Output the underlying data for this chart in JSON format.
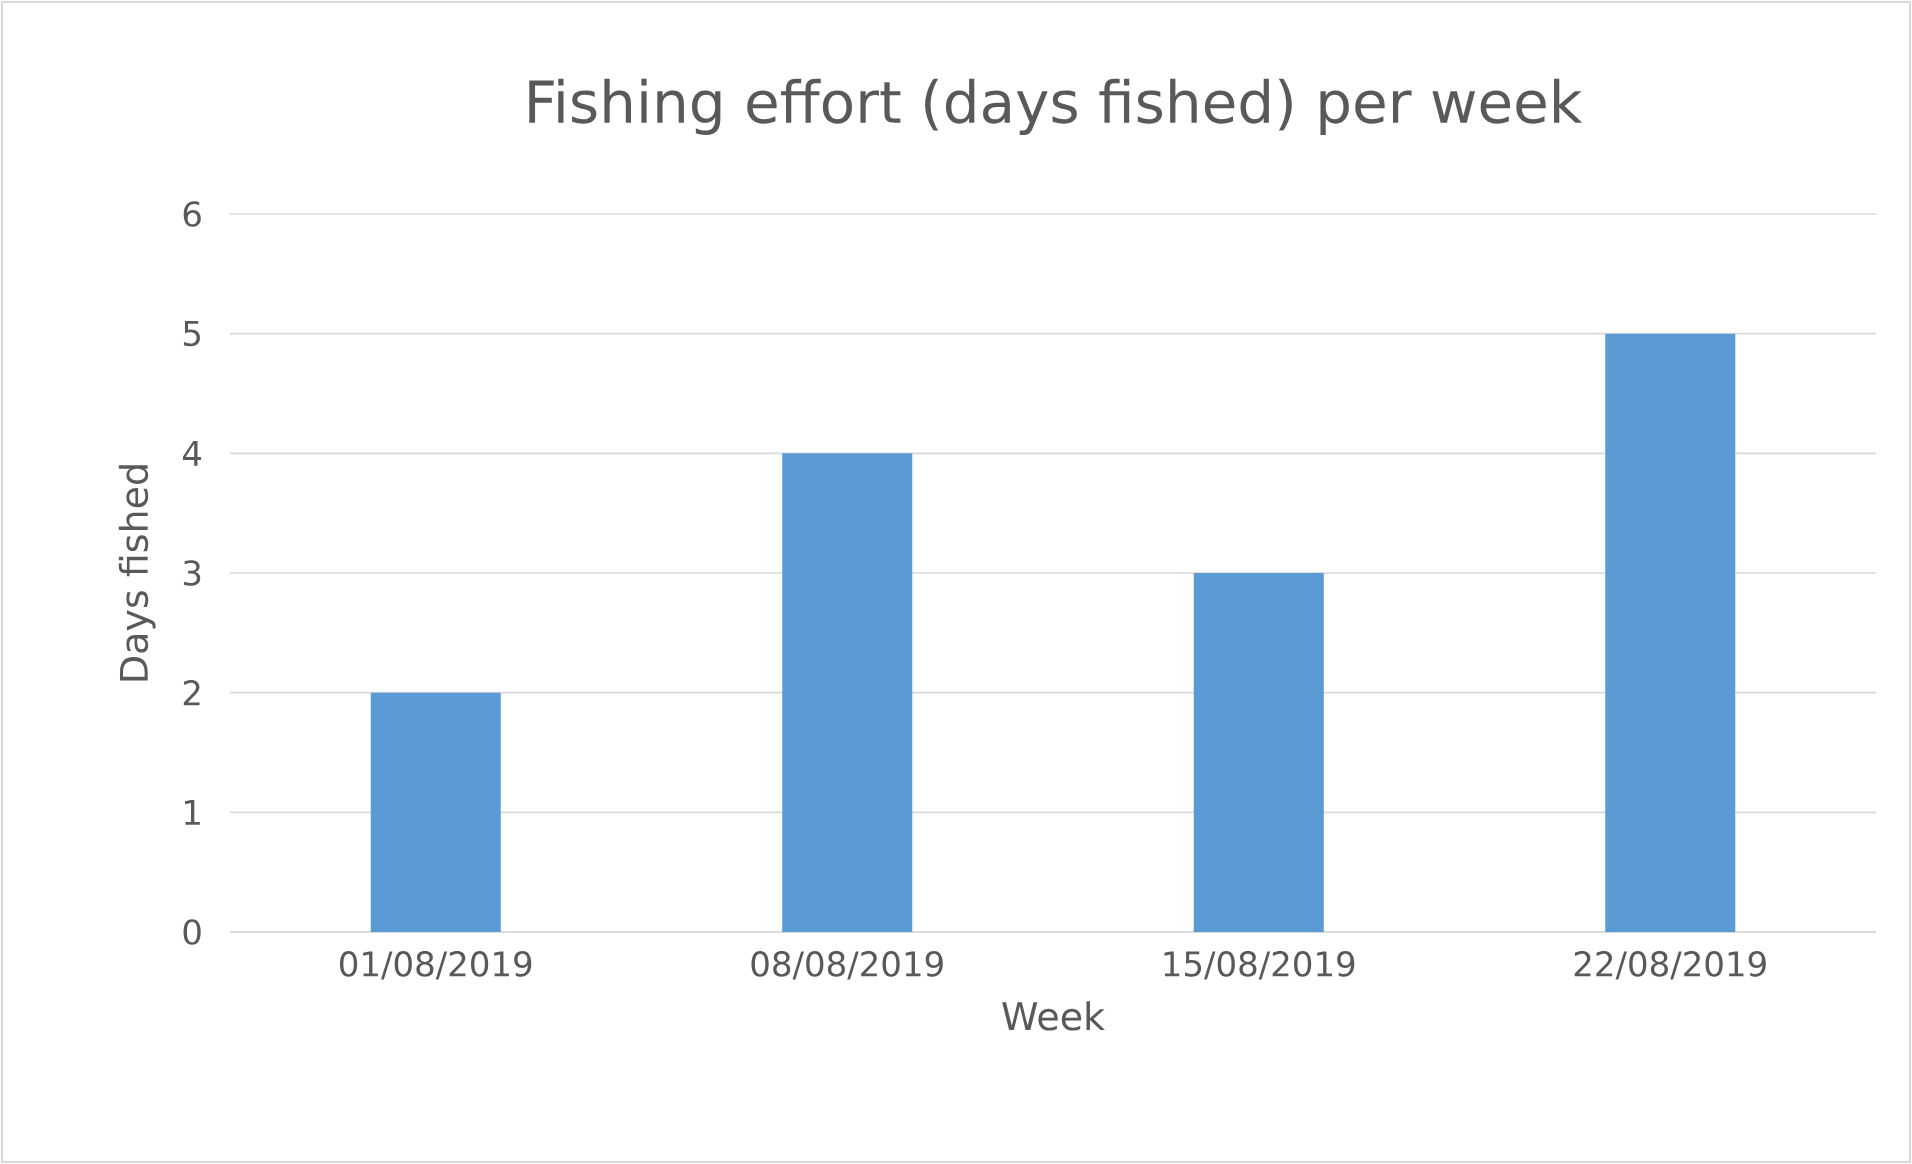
{
  "chart_data": {
    "type": "bar",
    "title": "Fishing effort (days fished) per week",
    "xlabel": "Week",
    "ylabel": "Days fished",
    "categories": [
      "01/08/2019",
      "08/08/2019",
      "15/08/2019",
      "22/08/2019"
    ],
    "values": [
      2,
      4,
      3,
      5
    ],
    "color": "#5b9bd5",
    "ylim": [
      0,
      6
    ],
    "yticks": [
      0,
      1,
      2,
      3,
      4,
      5,
      6
    ],
    "grid": "y"
  }
}
